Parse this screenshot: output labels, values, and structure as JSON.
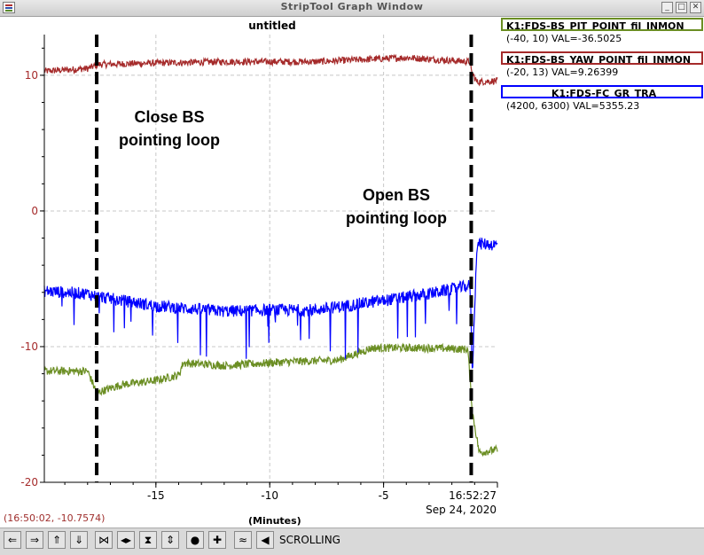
{
  "window": {
    "title": "StripTool Graph Window",
    "min_icon": "minimize-icon",
    "max_icon": "maximize-icon",
    "close_icon": "close-icon"
  },
  "plot": {
    "title": "untitled",
    "x_unit_label": "(Minutes)",
    "time_label": "16:52:27",
    "date_label": "Sep 24, 2020",
    "cursor_readout": "(16:50:02, -10.7574)"
  },
  "legend": [
    {
      "name": "K1:FDS-BS_PIT_POINT_fil_INMON",
      "range": "(-40, 10)",
      "val": "VAL=-36.5025",
      "color": "#6b8e23"
    },
    {
      "name": "K1:FDS-BS_YAW_POINT_fil_INMON",
      "range": "(-20, 13)",
      "val": "VAL=9.26399",
      "color": "#a52a2a"
    },
    {
      "name": "K1:FDS-FC_GR_TRA",
      "range": "(4200, 6300)",
      "val": "VAL=5355.23",
      "color": "#0000ff"
    }
  ],
  "annotations": {
    "close": [
      "Close BS",
      "pointing loop"
    ],
    "open": [
      "Open BS",
      "pointing loop"
    ]
  },
  "toolbar": {
    "mode_label": "SCROLLING",
    "icons": [
      "scroll-left-icon",
      "scroll-right-icon",
      "scroll-up-icon",
      "scroll-down-icon",
      "zoom-in-x-icon",
      "zoom-out-x-icon",
      "zoom-in-y-icon",
      "zoom-out-y-icon",
      "reset-icon",
      "auto-scale-icon",
      "refresh-icon",
      "scrolling-icon"
    ]
  },
  "chart_data": {
    "type": "line",
    "title": "untitled",
    "xlabel": "(Minutes)",
    "ylabel": "",
    "xlim": [
      -19.9,
      0
    ],
    "ylim": [
      -20,
      13
    ],
    "x_ticks": [
      -15,
      -10,
      -5,
      0
    ],
    "x_tick_labels": [
      "-15",
      "-10",
      "-5",
      "16:52:27"
    ],
    "y_ticks": [
      -20,
      -10,
      0,
      10
    ],
    "y_tick_labels": [
      "-20",
      "-10",
      "0",
      "10"
    ],
    "y_tick_color": "#a52a2a",
    "grid": true,
    "vlines": [
      -17.6,
      -1.15
    ],
    "series": [
      {
        "name": "K1:FDS-BS_YAW_POINT_fil_INMON",
        "color": "#a52a2a",
        "points": [
          [
            -19.9,
            10.3
          ],
          [
            -18.0,
            10.5
          ],
          [
            -17.5,
            10.8
          ],
          [
            -15,
            10.9
          ],
          [
            -12,
            11.0
          ],
          [
            -8,
            11.0
          ],
          [
            -4,
            11.3
          ],
          [
            -1.2,
            11.0
          ],
          [
            -1.15,
            10.3
          ],
          [
            -0.9,
            9.5
          ],
          [
            0,
            9.6
          ]
        ]
      },
      {
        "name": "K1:FDS-BS_PIT_POINT_fil_INMON",
        "color": "#6b8e23",
        "points": [
          [
            -19.9,
            -11.8
          ],
          [
            -18.0,
            -11.8
          ],
          [
            -17.6,
            -13.4
          ],
          [
            -16.5,
            -12.8
          ],
          [
            -15,
            -12.5
          ],
          [
            -14.0,
            -12.1
          ],
          [
            -13.8,
            -11.2
          ],
          [
            -12,
            -11.4
          ],
          [
            -9,
            -11.1
          ],
          [
            -7,
            -11.0
          ],
          [
            -5.5,
            -10.1
          ],
          [
            -3,
            -10.1
          ],
          [
            -1.3,
            -10.2
          ],
          [
            -1.1,
            -14.8
          ],
          [
            -0.8,
            -17.8
          ],
          [
            0,
            -17.6
          ]
        ]
      },
      {
        "name": "K1:FDS-FC_GR_TRA",
        "color": "#0000ff",
        "points": [
          [
            -19.9,
            -5.9
          ],
          [
            -18,
            -6.1
          ],
          [
            -17.6,
            -6.3
          ],
          [
            -15,
            -7.0
          ],
          [
            -12,
            -7.4
          ],
          [
            -10,
            -7.3
          ],
          [
            -8,
            -7.3
          ],
          [
            -5,
            -6.6
          ],
          [
            -3,
            -6.1
          ],
          [
            -1.2,
            -5.5
          ],
          [
            -1.1,
            -12.0
          ],
          [
            -0.9,
            -2.4
          ],
          [
            0,
            -2.5
          ]
        ]
      }
    ]
  }
}
